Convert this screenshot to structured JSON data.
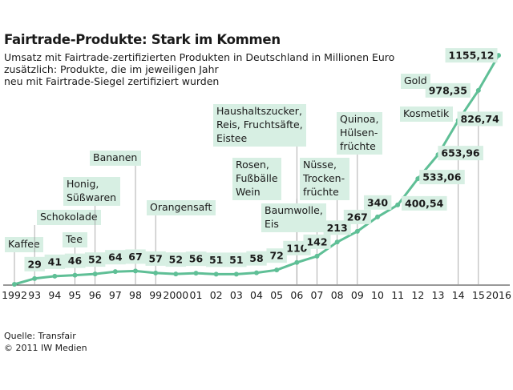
{
  "colors": {
    "accent": "#5fbf96",
    "label_bg": "#d7efe3",
    "text": "#1a1a1a",
    "line": "#5fbf96"
  },
  "footer": {
    "source": "Quelle: Transfair",
    "copyright": "© 2011 IW Medien"
  },
  "chart_data": {
    "type": "line",
    "title": "Fairtrade-Produkte: Stark im Kommen",
    "subtitle": [
      "Umsatz mit Fairtrade-zertifizierten Produkten in Deutschland in Millionen Euro",
      "zusätzlich: Produkte, die im jeweiligen Jahr",
      "neu mit Fairtrade-Siegel zertifiziert wurden"
    ],
    "x": [
      1992,
      1993,
      1994,
      1995,
      1996,
      1997,
      1998,
      1999,
      2000,
      2001,
      2002,
      2003,
      2004,
      2005,
      2006,
      2007,
      2008,
      2009,
      2010,
      2011,
      2012,
      2013,
      2014,
      2015,
      2016
    ],
    "x_tick_labels": [
      "1992",
      "93",
      "94",
      "95",
      "96",
      "97",
      "98",
      "99",
      "2000",
      "01",
      "02",
      "03",
      "04",
      "05",
      "06",
      "07",
      "08",
      "09",
      "10",
      "11",
      "12",
      "13",
      "14",
      "15",
      "2016"
    ],
    "series": [
      {
        "values": [
          0,
          29,
          41,
          46,
          52,
          64,
          67,
          57,
          52,
          56,
          51,
          51,
          58,
          72,
          110,
          142,
          213,
          267,
          340,
          400.54,
          533.06,
          653.96,
          826.74,
          978.35,
          1155.12
        ]
      }
    ],
    "value_labels": [
      "",
      "29",
      "41",
      "46",
      "52",
      "64",
      "67",
      "57",
      "52",
      "56",
      "51",
      "51",
      "58",
      "72",
      "110",
      "142",
      "213",
      "267",
      "340",
      "400,54",
      "533,06",
      "653,96",
      "826,74",
      "978,35",
      "1155,12"
    ],
    "ylim": [
      0,
      1200
    ],
    "grid": false,
    "annotations": [
      {
        "year": 1992,
        "lines": [
          "Kaffee"
        ]
      },
      {
        "year": 1993,
        "lines": [
          "Schokolade"
        ]
      },
      {
        "year": 1995,
        "lines": [
          "Tee"
        ]
      },
      {
        "year": 1996,
        "lines": [
          "Honig,",
          "Süßwaren"
        ]
      },
      {
        "year": 1998,
        "lines": [
          "Bananen"
        ]
      },
      {
        "year": 1999,
        "lines": [
          "Orangensaft"
        ]
      },
      {
        "year": 2006,
        "lines": [
          "Rosen,",
          "Fußbälle",
          "Wein"
        ]
      },
      {
        "year": 2006,
        "lines": [
          "Haushaltszucker,",
          "Reis, Fruchtsäfte,",
          "Eistee"
        ]
      },
      {
        "year": 2007,
        "lines": [
          "Baumwolle,",
          "Eis"
        ]
      },
      {
        "year": 2008,
        "lines": [
          "Nüsse,",
          "Trocken-",
          "früchte"
        ]
      },
      {
        "year": 2009,
        "lines": [
          "Quinoa,",
          "Hülsen-",
          "früchte"
        ]
      },
      {
        "year": 2014,
        "lines": [
          "Kosmetik"
        ]
      },
      {
        "year": 2015,
        "lines": [
          "Gold"
        ]
      }
    ]
  }
}
